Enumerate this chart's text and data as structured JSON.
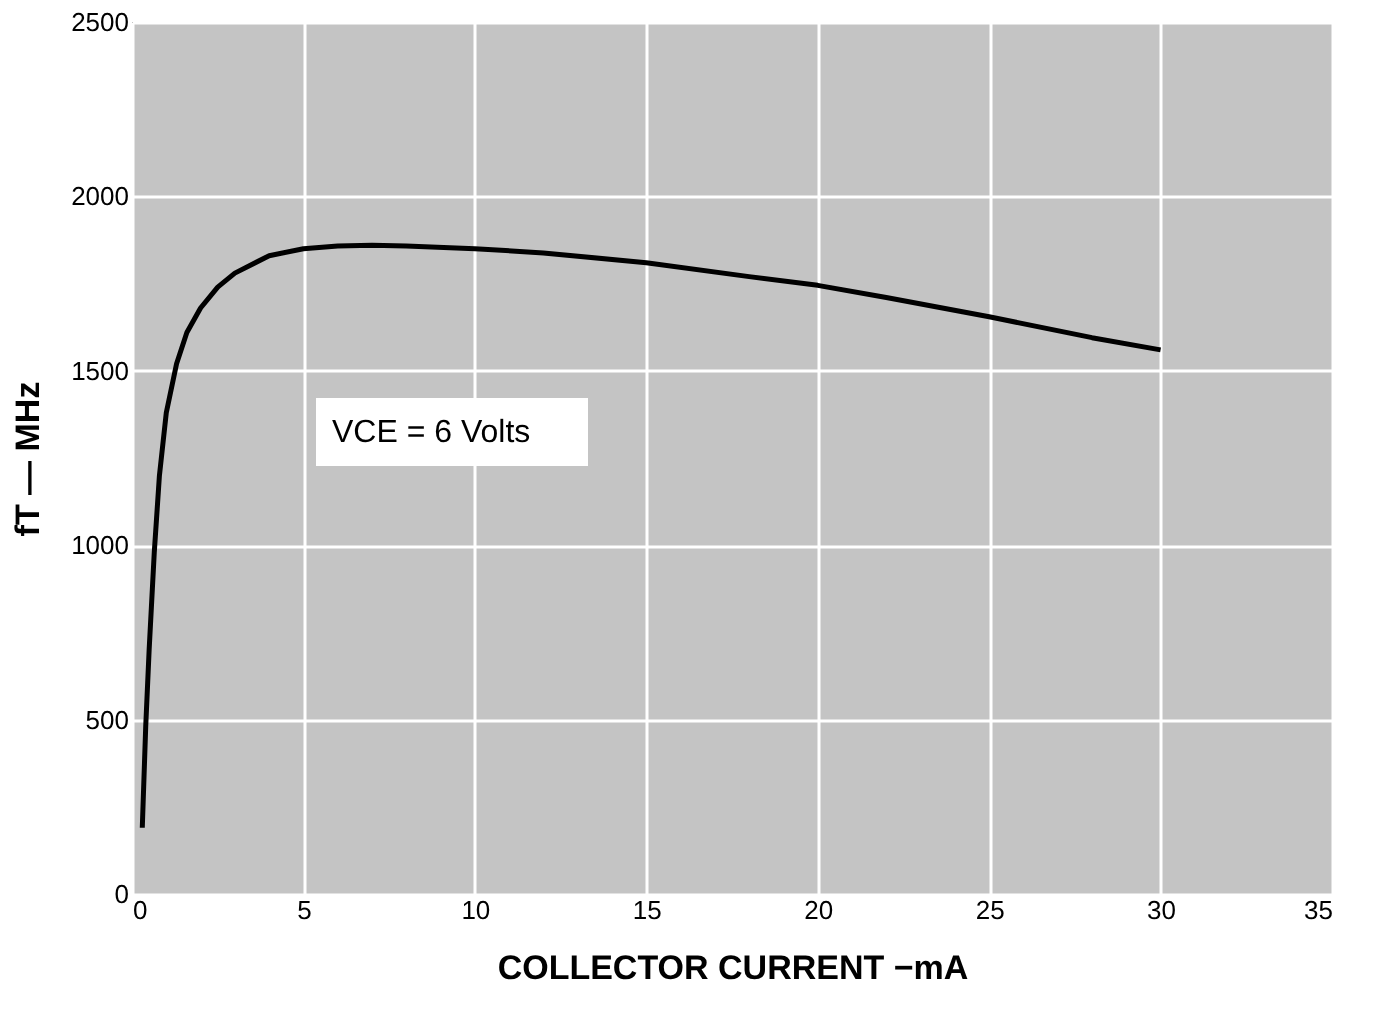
{
  "chart_data": {
    "type": "line",
    "xlabel": "COLLECTOR CURRENT −mA",
    "ylabel": "fT — MHz",
    "annotations": [
      "VCE = 6 Volts"
    ],
    "x": [
      0.3,
      0.4,
      0.5,
      0.65,
      0.8,
      1,
      1.3,
      1.6,
      2,
      2.5,
      3,
      4,
      5,
      6,
      7,
      8,
      10,
      12,
      15,
      18,
      20,
      22,
      25,
      28,
      30
    ],
    "series": [
      {
        "color": "#000000",
        "values": [
          190,
          480,
          700,
          980,
          1200,
          1380,
          1520,
          1610,
          1680,
          1740,
          1780,
          1830,
          1850,
          1858,
          1860,
          1858,
          1850,
          1838,
          1810,
          1770,
          1745,
          1710,
          1655,
          1595,
          1560
        ]
      }
    ],
    "xlim": [
      0,
      35
    ],
    "xticks": [
      0,
      5,
      10,
      15,
      20,
      25,
      30,
      35
    ],
    "ylim": [
      0,
      2500
    ],
    "yticks": [
      0,
      500,
      1000,
      1500,
      2000,
      2500
    ],
    "grid": true,
    "marker": "none",
    "line_style": "solid"
  }
}
